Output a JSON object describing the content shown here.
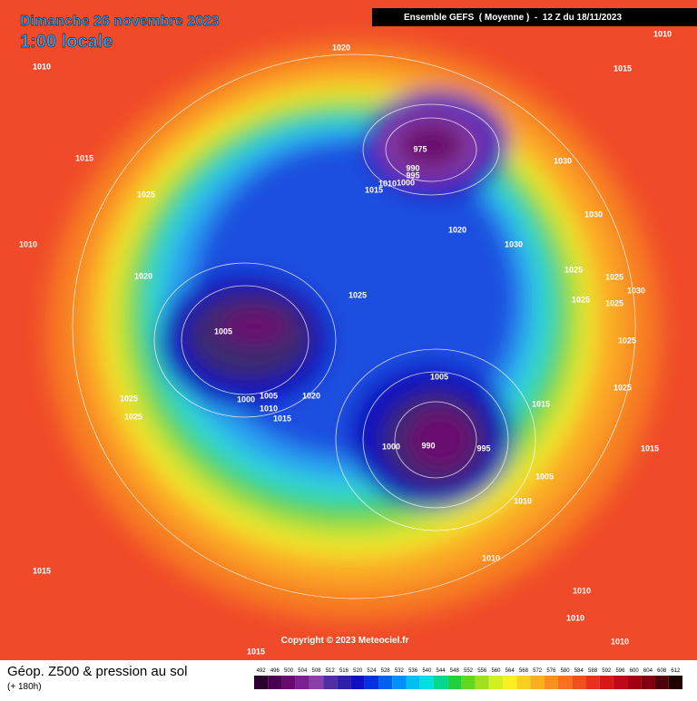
{
  "header": {
    "date": "Dimanche 26 novembre 2023",
    "local_time": "1:00 locale",
    "model": "Ensemble GEFS  ( Moyenne )  -  12 Z du 18/11/2023"
  },
  "map": {
    "isobar_labels": [
      "1020",
      "1010",
      "1010",
      "1015",
      "1015",
      "975",
      "990",
      "995",
      "1000",
      "1010",
      "1015",
      "1030",
      "1025",
      "1030",
      "1020",
      "1030",
      "1010",
      "1025",
      "1020",
      "1025",
      "1025",
      "1025",
      "1025",
      "1030",
      "1005",
      "1025",
      "1005",
      "1025",
      "1025",
      "1000",
      "1005",
      "1020",
      "1010",
      "1015",
      "1025",
      "1015",
      "990",
      "1000",
      "995",
      "1015",
      "1005",
      "1010",
      "1015",
      "1010",
      "1010",
      "1010",
      "1010",
      "1015"
    ],
    "copyright": "Copyright © 2023 Meteociel.fr"
  },
  "footer": {
    "title": "Géop. Z500 & pression au sol",
    "lead": "(+ 180h)",
    "levels": [
      492,
      496,
      500,
      504,
      508,
      512,
      516,
      520,
      524,
      528,
      532,
      536,
      540,
      544,
      548,
      552,
      556,
      560,
      564,
      568,
      572,
      576,
      580,
      584,
      588,
      592,
      596,
      600,
      604,
      608,
      612
    ],
    "colors": [
      "#2a0030",
      "#4a0050",
      "#6a0a70",
      "#7a2090",
      "#8a40a8",
      "#5030a0",
      "#3020a8",
      "#1010c0",
      "#0030e0",
      "#0060f0",
      "#0090f8",
      "#00c0f0",
      "#00e0e0",
      "#00d890",
      "#20d040",
      "#60d820",
      "#a0e020",
      "#d0f020",
      "#f8f020",
      "#f8d020",
      "#f8b020",
      "#f89020",
      "#f87020",
      "#f05020",
      "#e83020",
      "#d81818",
      "#c00818",
      "#a00010",
      "#800010",
      "#500008",
      "#200000"
    ]
  }
}
